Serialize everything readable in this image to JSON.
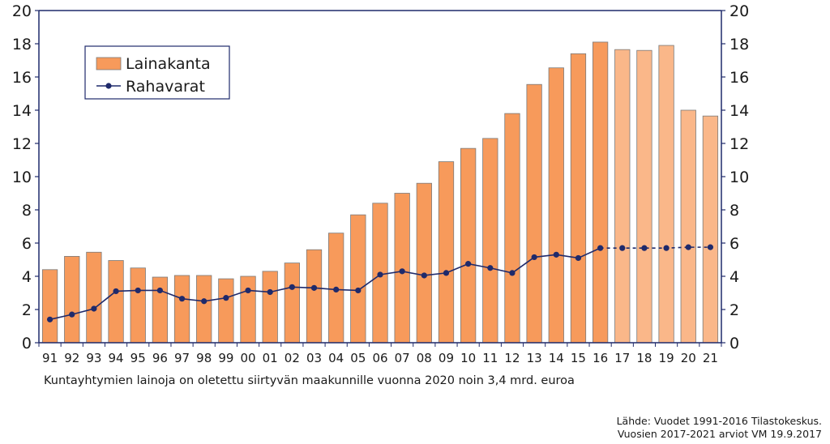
{
  "chart_data": {
    "type": "bar+line",
    "categories": [
      "91",
      "92",
      "93",
      "94",
      "95",
      "96",
      "97",
      "98",
      "99",
      "00",
      "01",
      "02",
      "03",
      "04",
      "05",
      "06",
      "07",
      "08",
      "09",
      "10",
      "11",
      "12",
      "13",
      "14",
      "15",
      "16",
      "17",
      "18",
      "19",
      "20",
      "21"
    ],
    "series": [
      {
        "name": "Lainakanta",
        "kind": "bar",
        "color": "#f79a5b",
        "forecast_color": "#fab789",
        "values": [
          4.4,
          5.2,
          5.45,
          4.95,
          4.5,
          3.95,
          4.05,
          4.05,
          3.85,
          4.0,
          4.3,
          4.8,
          5.6,
          6.6,
          7.7,
          8.4,
          9.0,
          9.6,
          10.9,
          11.7,
          12.3,
          13.8,
          15.55,
          16.55,
          17.4,
          18.1,
          17.65,
          17.6,
          17.9,
          14.0,
          13.65
        ]
      },
      {
        "name": "Rahavarat",
        "kind": "line",
        "color": "#1f2a6b",
        "values": [
          1.4,
          1.7,
          2.05,
          3.1,
          3.15,
          3.15,
          2.65,
          2.5,
          2.7,
          3.15,
          3.05,
          3.35,
          3.3,
          3.2,
          3.15,
          4.1,
          4.3,
          4.05,
          4.2,
          4.75,
          4.5,
          4.2,
          5.15,
          5.3,
          5.1,
          5.7,
          5.7,
          5.7,
          5.7,
          5.75,
          5.75
        ]
      }
    ],
    "forecast_start_index": 26,
    "ylim": [
      0,
      20
    ],
    "yticks": [
      0,
      2,
      4,
      6,
      8,
      10,
      12,
      14,
      16,
      18,
      20
    ],
    "right_axis": {
      "ylim": [
        0,
        20
      ],
      "yticks": [
        0,
        2,
        4,
        6,
        8,
        10,
        12,
        14,
        16,
        18,
        20
      ]
    },
    "legend": {
      "position": "top-left",
      "entries": [
        "Lainakanta",
        "Rahavarat"
      ]
    },
    "title": "",
    "xlabel": "",
    "ylabel": ""
  },
  "note": "Kuntayhtymien lainoja on oletettu siirtyvän maakunnille vuonna 2020   noin 3,4 mrd. euroa",
  "source": {
    "line1": "Lähde: Vuodet 1991-2016 Tilastokeskus.",
    "line2": "Vuosien 2017-2021 arviot VM 19.9.2017"
  },
  "colors": {
    "axis": "#1f2a6b",
    "bar_border": "#7a7a7a"
  }
}
